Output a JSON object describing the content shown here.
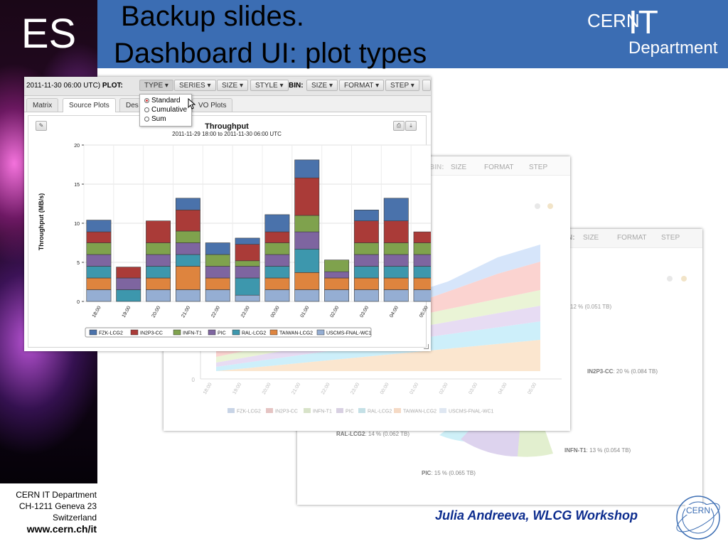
{
  "slide": {
    "corner_label": "ES",
    "title_line1": "Backup slides.",
    "title_line2": "Dashboard UI: plot types",
    "logo": {
      "cern": "CERN",
      "it": "IT",
      "department": "Department"
    },
    "footer": {
      "line1": "CERN IT Department",
      "line2": "CH-1211 Geneva 23",
      "line3": "Switzerland",
      "url": "www.cern.ch/it"
    },
    "author": "Julia Andreeva, WLCG Workshop",
    "seal_text": "CERN"
  },
  "colors": {
    "header_blue": "#3b6db3",
    "FZK-LCG2": "#4a72ab",
    "IN2P3-CC": "#aa3b38",
    "INFN-T1": "#7fa24d",
    "PIC": "#7e65a0",
    "RAL-LCG2": "#3d97ad",
    "TAIWAN-LCG2": "#de843e",
    "USCMS-FNAL-WC1": "#95aed3"
  },
  "main_window": {
    "toolbar": {
      "date": "2011-11-30 06:00 UTC)",
      "plot_label": "PLOT:",
      "type_btn": "TYPE",
      "series_btn": "SERIES",
      "size_btn": "SIZE",
      "style_btn": "STYLE",
      "bin_label": "BIN:",
      "bin_size_btn": "SIZE",
      "format_btn": "FORMAT",
      "step_btn": "STEP",
      "caret": "▾"
    },
    "tabs": [
      "Matrix",
      "Source Plots",
      "Des",
      "VO Plots"
    ],
    "active_tab": "Source Plots",
    "type_menu": {
      "options": [
        "Standard",
        "Cumulative",
        "Sum"
      ],
      "selected": "Standard"
    }
  },
  "area_window": {
    "toolbar": {
      "bin_label": "BIN:",
      "size": "SIZE",
      "format": "FORMAT",
      "step": "STEP"
    },
    "legend": [
      "FZK-LCG2",
      "IN2P3-CC",
      "INFN-T1",
      "PIC",
      "RAL-LCG2",
      "TAIWAN-LCG2",
      "USCMS-FNAL-WC1"
    ],
    "x_ticks": [
      "18:00",
      "19:00",
      "20:00",
      "21:00",
      "22:00",
      "23:00",
      "00:00",
      "01:00",
      "02:00",
      "03:00",
      "04:00",
      "05:00"
    ],
    "y_zero": "0"
  },
  "pie_window": {
    "toolbar": {
      "bin_label": "N:",
      "size": "SIZE",
      "format": "FORMAT",
      "step": "STEP"
    },
    "labels": [
      {
        "site": "IN2P3-CC",
        "text": ": 20 % (0.084 TB)"
      },
      {
        "site": "RAL-LCG2",
        "text": ": 14 % (0.062 TB)"
      },
      {
        "site": "INFN-T1",
        "text": ": 13 % (0.054 TB)"
      },
      {
        "site": "PIC",
        "text": ": 15 % (0.065 TB)"
      }
    ],
    "partial_label": "12 % (0.051 TB)"
  },
  "chart_data": {
    "type": "bar",
    "stacked": true,
    "title": "Throughput",
    "subtitle": "2011-11-29 18:00 to 2011-11-30 06:00 UTC",
    "xlabel": "",
    "ylabel": "Throughput (MB/s)",
    "ylim": [
      0,
      20
    ],
    "y_ticks": [
      0,
      5,
      10,
      15,
      20
    ],
    "grid": true,
    "legend_position": "bottom",
    "categories": [
      "18:00",
      "19:00",
      "20:00",
      "21:00",
      "22:00",
      "23:00",
      "00:00",
      "01:00",
      "02:00",
      "03:00",
      "04:00",
      "05:00"
    ],
    "series": [
      {
        "name": "USCMS-FNAL-WC1",
        "values": [
          1.5,
          0,
          1.5,
          1.5,
          1.5,
          0.8,
          1.5,
          1.5,
          1.5,
          1.5,
          1.5,
          1.5
        ]
      },
      {
        "name": "TAIWAN-LCG2",
        "values": [
          1.5,
          0,
          1.5,
          3.0,
          1.5,
          0,
          1.5,
          2.2,
          1.5,
          1.5,
          1.5,
          1.5
        ]
      },
      {
        "name": "RAL-LCG2",
        "values": [
          1.5,
          1.5,
          1.5,
          1.5,
          0,
          2.2,
          1.5,
          3.0,
          0,
          1.5,
          1.5,
          1.5
        ]
      },
      {
        "name": "PIC",
        "values": [
          1.5,
          1.5,
          1.5,
          1.5,
          1.5,
          1.5,
          1.5,
          2.2,
          0.8,
          1.5,
          1.5,
          1.5
        ]
      },
      {
        "name": "INFN-T1",
        "values": [
          1.5,
          0,
          1.5,
          1.5,
          1.5,
          0.7,
          1.5,
          2.1,
          1.5,
          1.5,
          1.5,
          1.5
        ]
      },
      {
        "name": "IN2P3-CC",
        "values": [
          1.4,
          1.4,
          2.8,
          2.7,
          0,
          2.1,
          1.4,
          4.8,
          0,
          2.8,
          2.8,
          1.4
        ]
      },
      {
        "name": "FZK-LCG2",
        "values": [
          1.5,
          0,
          0,
          1.5,
          1.5,
          0.8,
          2.2,
          2.3,
          0,
          1.4,
          2.9,
          0
        ]
      }
    ],
    "legend": [
      "FZK-LCG2",
      "IN2P3-CC",
      "INFN-T1",
      "PIC",
      "RAL-LCG2",
      "TAIWAN-LCG2",
      "USCMS-FNAL-WC1"
    ]
  }
}
